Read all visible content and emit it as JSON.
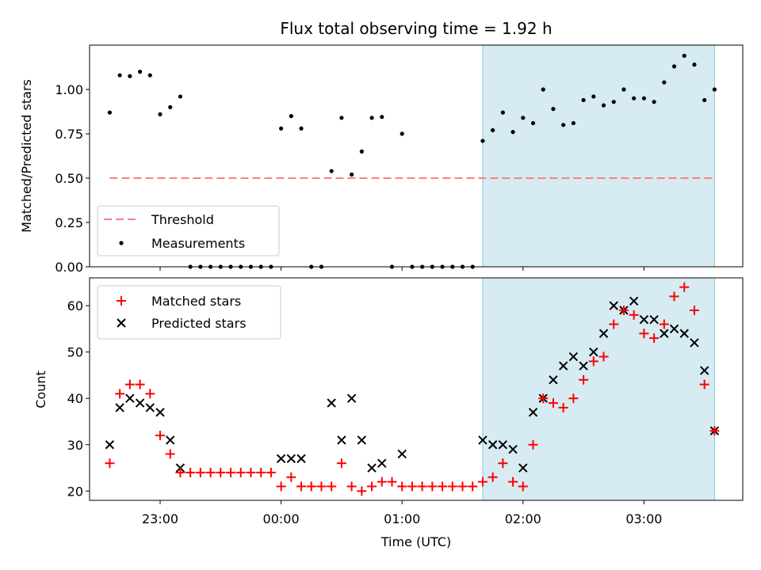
{
  "chart_data": [
    {
      "type": "scatter",
      "title": "Flux total observing time = 1.92 h",
      "xlabel": "",
      "ylabel": "Matched/Predicted stars",
      "ylim": [
        0,
        1.25
      ],
      "xlim": [
        "22:25",
        "03:49"
      ],
      "yticks": [
        "0.00",
        "0.25",
        "0.50",
        "0.75",
        "1.00"
      ],
      "highlight_region": {
        "start": "01:40",
        "end": "03:35",
        "color": "#add8e6"
      },
      "threshold": {
        "name": "Threshold",
        "value": 0.5,
        "x_start": "22:35",
        "x_end": "03:35",
        "color": "#ff7f7f",
        "style": "dashed"
      },
      "legend": {
        "placement": "lower-left",
        "entries": [
          "Threshold",
          "Measurements"
        ]
      },
      "series": [
        {
          "name": "Measurements",
          "color": "#000000",
          "points": [
            [
              "22:35",
              0.87
            ],
            [
              "22:40",
              1.08
            ],
            [
              "22:45",
              1.075
            ],
            [
              "22:50",
              1.1
            ],
            [
              "22:55",
              1.08
            ],
            [
              "23:00",
              0.86
            ],
            [
              "23:05",
              0.9
            ],
            [
              "23:10",
              0.96
            ],
            [
              "23:15",
              0
            ],
            [
              "23:20",
              0
            ],
            [
              "23:25",
              0
            ],
            [
              "23:30",
              0
            ],
            [
              "23:35",
              0
            ],
            [
              "23:40",
              0
            ],
            [
              "23:45",
              0
            ],
            [
              "23:50",
              0
            ],
            [
              "23:55",
              0
            ],
            [
              "00:00",
              0.78
            ],
            [
              "00:05",
              0.85
            ],
            [
              "00:10",
              0.78
            ],
            [
              "00:15",
              0
            ],
            [
              "00:20",
              0
            ],
            [
              "00:25",
              0.54
            ],
            [
              "00:30",
              0.84
            ],
            [
              "00:35",
              0.52
            ],
            [
              "00:40",
              0.65
            ],
            [
              "00:45",
              0.84
            ],
            [
              "00:50",
              0.845
            ],
            [
              "00:55",
              0
            ],
            [
              "01:00",
              0.75
            ],
            [
              "01:05",
              0
            ],
            [
              "01:10",
              0
            ],
            [
              "01:15",
              0
            ],
            [
              "01:20",
              0
            ],
            [
              "01:25",
              0
            ],
            [
              "01:30",
              0
            ],
            [
              "01:35",
              0
            ],
            [
              "01:40",
              0.71
            ],
            [
              "01:45",
              0.77
            ],
            [
              "01:50",
              0.87
            ],
            [
              "01:55",
              0.76
            ],
            [
              "02:00",
              0.84
            ],
            [
              "02:05",
              0.81
            ],
            [
              "02:10",
              1.0
            ],
            [
              "02:15",
              0.89
            ],
            [
              "02:20",
              0.8
            ],
            [
              "02:25",
              0.81
            ],
            [
              "02:30",
              0.94
            ],
            [
              "02:35",
              0.96
            ],
            [
              "02:40",
              0.91
            ],
            [
              "02:45",
              0.93
            ],
            [
              "02:50",
              1.0
            ],
            [
              "02:55",
              0.95
            ],
            [
              "03:00",
              0.95
            ],
            [
              "03:05",
              0.93
            ],
            [
              "03:10",
              1.04
            ],
            [
              "03:15",
              1.13
            ],
            [
              "03:20",
              1.19
            ],
            [
              "03:25",
              1.14
            ],
            [
              "03:30",
              0.94
            ],
            [
              "03:35",
              1.0
            ]
          ]
        }
      ]
    },
    {
      "type": "scatter",
      "title": "",
      "xlabel": "Time (UTC)",
      "ylabel": "Count",
      "ylim": [
        18,
        66
      ],
      "xlim": [
        "22:25",
        "03:49"
      ],
      "yticks": [
        "20",
        "30",
        "40",
        "50",
        "60"
      ],
      "xticks": [
        "23:00",
        "00:00",
        "01:00",
        "02:00",
        "03:00"
      ],
      "highlight_region": {
        "start": "01:40",
        "end": "03:35",
        "color": "#add8e6"
      },
      "legend": {
        "placement": "upper-left",
        "entries": [
          "Matched stars",
          "Predicted stars"
        ]
      },
      "series": [
        {
          "name": "Matched stars",
          "color": "#ff0000",
          "marker": "plus",
          "points": [
            [
              "22:35",
              26
            ],
            [
              "22:40",
              41
            ],
            [
              "22:45",
              43
            ],
            [
              "22:50",
              43
            ],
            [
              "22:55",
              41
            ],
            [
              "23:00",
              32
            ],
            [
              "23:05",
              28
            ],
            [
              "23:10",
              24
            ],
            [
              "23:15",
              24
            ],
            [
              "23:20",
              24
            ],
            [
              "23:25",
              24
            ],
            [
              "23:30",
              24
            ],
            [
              "23:35",
              24
            ],
            [
              "23:40",
              24
            ],
            [
              "23:45",
              24
            ],
            [
              "23:50",
              24
            ],
            [
              "23:55",
              24
            ],
            [
              "00:00",
              21
            ],
            [
              "00:05",
              23
            ],
            [
              "00:10",
              21
            ],
            [
              "00:15",
              21
            ],
            [
              "00:20",
              21
            ],
            [
              "00:25",
              21
            ],
            [
              "00:30",
              26
            ],
            [
              "00:35",
              21
            ],
            [
              "00:40",
              20
            ],
            [
              "00:45",
              21
            ],
            [
              "00:50",
              22
            ],
            [
              "00:55",
              22
            ],
            [
              "01:00",
              21
            ],
            [
              "01:05",
              21
            ],
            [
              "01:10",
              21
            ],
            [
              "01:15",
              21
            ],
            [
              "01:20",
              21
            ],
            [
              "01:25",
              21
            ],
            [
              "01:30",
              21
            ],
            [
              "01:35",
              21
            ],
            [
              "01:40",
              22
            ],
            [
              "01:45",
              23
            ],
            [
              "01:50",
              26
            ],
            [
              "01:55",
              22
            ],
            [
              "02:00",
              21
            ],
            [
              "02:05",
              30
            ],
            [
              "02:10",
              40
            ],
            [
              "02:15",
              39
            ],
            [
              "02:20",
              38
            ],
            [
              "02:25",
              40
            ],
            [
              "02:30",
              44
            ],
            [
              "02:35",
              48
            ],
            [
              "02:40",
              49
            ],
            [
              "02:45",
              56
            ],
            [
              "02:50",
              59
            ],
            [
              "02:55",
              58
            ],
            [
              "03:00",
              54
            ],
            [
              "03:05",
              53
            ],
            [
              "03:10",
              56
            ],
            [
              "03:15",
              62
            ],
            [
              "03:20",
              64
            ],
            [
              "03:25",
              59
            ],
            [
              "03:30",
              43
            ],
            [
              "03:35",
              33
            ]
          ]
        },
        {
          "name": "Predicted stars",
          "color": "#000000",
          "marker": "x",
          "points": [
            [
              "22:35",
              30
            ],
            [
              "22:40",
              38
            ],
            [
              "22:45",
              40
            ],
            [
              "22:50",
              39
            ],
            [
              "22:55",
              38
            ],
            [
              "23:00",
              37
            ],
            [
              "23:05",
              31
            ],
            [
              "23:10",
              25
            ],
            [
              "00:00",
              27
            ],
            [
              "00:05",
              27
            ],
            [
              "00:10",
              27
            ],
            [
              "00:25",
              39
            ],
            [
              "00:30",
              31
            ],
            [
              "00:35",
              40
            ],
            [
              "00:40",
              31
            ],
            [
              "00:45",
              25
            ],
            [
              "00:50",
              26
            ],
            [
              "01:00",
              28
            ],
            [
              "01:40",
              31
            ],
            [
              "01:45",
              30
            ],
            [
              "01:50",
              30
            ],
            [
              "01:55",
              29
            ],
            [
              "02:00",
              25
            ],
            [
              "02:05",
              37
            ],
            [
              "02:10",
              40
            ],
            [
              "02:15",
              44
            ],
            [
              "02:20",
              47
            ],
            [
              "02:25",
              49
            ],
            [
              "02:30",
              47
            ],
            [
              "02:35",
              50
            ],
            [
              "02:40",
              54
            ],
            [
              "02:45",
              60
            ],
            [
              "02:50",
              59
            ],
            [
              "02:55",
              61
            ],
            [
              "03:00",
              57
            ],
            [
              "03:05",
              57
            ],
            [
              "03:10",
              54
            ],
            [
              "03:15",
              55
            ],
            [
              "03:20",
              54
            ],
            [
              "03:25",
              52
            ],
            [
              "03:30",
              46
            ],
            [
              "03:35",
              33
            ]
          ]
        }
      ]
    }
  ]
}
